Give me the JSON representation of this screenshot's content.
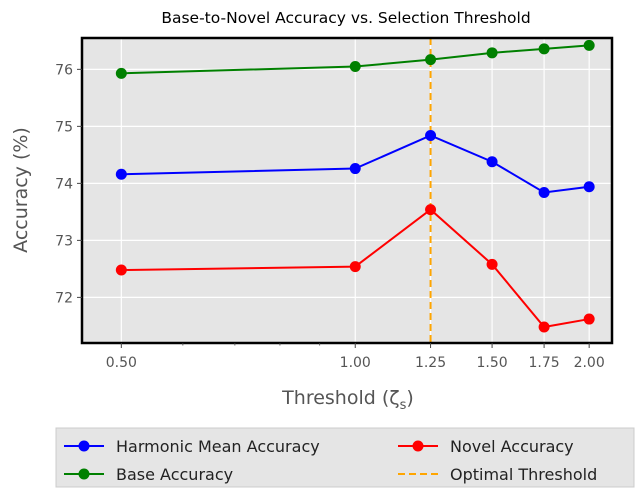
{
  "chart_data": {
    "type": "line",
    "title": "Base-to-Novel Accuracy vs. Selection Threshold",
    "xlabel": "Threshold (ζ",
    "xlabel_sub": "s",
    "xlabel_close": ")",
    "ylabel": "Accuracy (%)",
    "x": [
      0.5,
      1.0,
      1.25,
      1.5,
      1.75,
      2.0
    ],
    "x_tick_labels": [
      "0.50",
      "1.00",
      "1.25",
      "1.50",
      "1.75",
      "2.00"
    ],
    "x_scale": "log",
    "xlim": [
      0.445,
      2.14
    ],
    "ylim": [
      71.2,
      76.55
    ],
    "y_ticks": [
      72,
      73,
      74,
      75,
      76
    ],
    "y_tick_labels": [
      "72",
      "73",
      "74",
      "75",
      "76"
    ],
    "grid": true,
    "background": "#e5e5e5",
    "series": [
      {
        "name": "Harmonic Mean Accuracy",
        "color": "#0000ff",
        "values": [
          74.16,
          74.26,
          74.84,
          74.38,
          73.84,
          73.94
        ]
      },
      {
        "name": "Base Accuracy",
        "color": "#008000",
        "values": [
          75.93,
          76.05,
          76.17,
          76.29,
          76.36,
          76.42
        ]
      },
      {
        "name": "Novel Accuracy",
        "color": "#ff0000",
        "values": [
          72.48,
          72.54,
          73.54,
          72.58,
          71.48,
          71.62
        ]
      }
    ],
    "reference_line": {
      "name": "Optimal Threshold",
      "x": 1.25,
      "color": "#ffa500",
      "style": "dashed"
    },
    "legend": {
      "placement": "bottom, below plot",
      "columns": 2,
      "entries": [
        "Harmonic Mean Accuracy",
        "Novel Accuracy",
        "Base Accuracy",
        "Optimal Threshold"
      ]
    }
  }
}
